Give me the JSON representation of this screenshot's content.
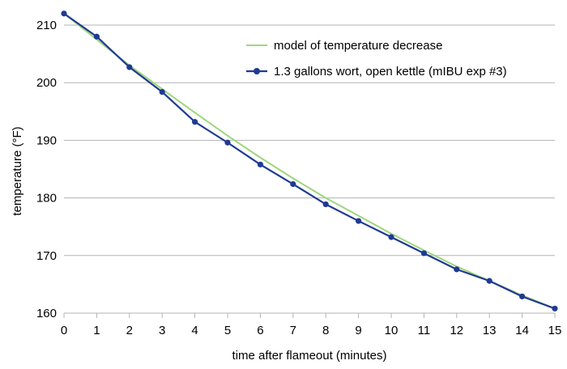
{
  "chart_data": {
    "type": "line",
    "xlabel": "time after flameout (minutes)",
    "ylabel": "temperature (°F)",
    "xlim": [
      0,
      15
    ],
    "ylim": [
      160,
      212
    ],
    "x_ticks": [
      0,
      1,
      2,
      3,
      4,
      5,
      6,
      7,
      8,
      9,
      10,
      11,
      12,
      13,
      14,
      15
    ],
    "y_ticks": [
      160,
      170,
      180,
      190,
      200,
      210
    ],
    "grid": "horizontal",
    "legend_position": "top-right",
    "series": [
      {
        "name": "model of temperature decrease",
        "color": "#9ed67c",
        "marker": "none",
        "x": [
          0,
          1,
          2,
          3,
          4,
          5,
          6,
          7,
          8,
          9,
          10,
          11,
          12,
          13,
          14,
          15
        ],
        "values": [
          212.0,
          207.5,
          203.0,
          198.9,
          194.8,
          190.8,
          187.0,
          183.4,
          180.0,
          176.9,
          173.8,
          170.9,
          168.1,
          165.6,
          163.1,
          160.8
        ]
      },
      {
        "name": "1.3 gallons wort, open kettle (mIBU exp #3)",
        "color": "#1f3a93",
        "marker": "circle",
        "x": [
          0,
          1,
          2,
          3,
          4,
          5,
          6,
          7,
          8,
          9,
          10,
          11,
          12,
          13,
          14,
          15
        ],
        "values": [
          212.0,
          208.0,
          202.7,
          198.4,
          193.2,
          189.6,
          185.8,
          182.4,
          178.9,
          176.0,
          173.2,
          170.4,
          167.6,
          165.6,
          162.9,
          160.8
        ]
      }
    ]
  }
}
